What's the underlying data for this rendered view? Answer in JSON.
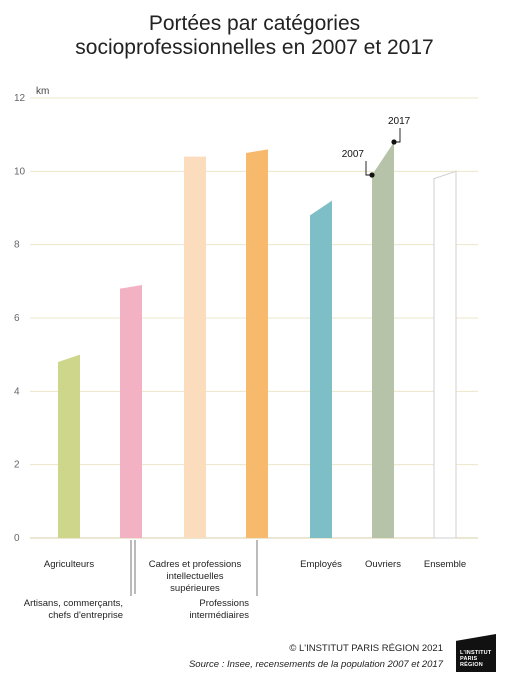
{
  "title_line1": "Portées par catégories",
  "title_line2": "socioprofessionnelles en 2007 et 2017",
  "credit": "© L'INSTITUT PARIS RÉGION 2021",
  "source": "Source : Insee, recensements de la population 2007 et 2017",
  "logo": {
    "line1": "L'INSTITUT",
    "line2": "PARIS",
    "line3": "RÉGION"
  },
  "chart_data": {
    "type": "bar",
    "ylabel": "km",
    "ylim": [
      0,
      12
    ],
    "yticks": [
      0,
      2,
      4,
      6,
      8,
      10,
      12
    ],
    "grid": true,
    "note": "Each bar is a slanted column from the 2007 value (left edge) to the 2017 value (right edge).",
    "categories": [
      {
        "label": [
          "Agriculteurs"
        ],
        "v2007": 4.8,
        "v2017": 5.0,
        "color": "#cdd68a"
      },
      {
        "label": [
          "Artisans, commerçants,",
          "chefs d'entreprise"
        ],
        "v2007": 6.8,
        "v2017": 6.9,
        "color": "#f2b2c4"
      },
      {
        "label": [
          "Cadres et professions",
          "intellectuelles",
          "supérieures"
        ],
        "v2007": 10.4,
        "v2017": 10.4,
        "color": "#fbdcbc"
      },
      {
        "label": [
          "Professions",
          "intermédiaires"
        ],
        "v2007": 10.5,
        "v2017": 10.6,
        "color": "#f7b96c"
      },
      {
        "label": [
          "Employés"
        ],
        "v2007": 8.8,
        "v2017": 9.2,
        "color": "#7ebec6"
      },
      {
        "label": [
          "Ouvriers"
        ],
        "v2007": 9.9,
        "v2017": 10.8,
        "color": "#b6c3a9"
      },
      {
        "label": [
          "Ensemble"
        ],
        "v2007": 9.8,
        "v2017": 10.0,
        "color": "#ffffff"
      }
    ],
    "annotations": [
      {
        "text": "2007",
        "category": "Ouvriers",
        "year": "2007"
      },
      {
        "text": "2017",
        "category": "Ouvriers",
        "year": "2017"
      }
    ]
  }
}
